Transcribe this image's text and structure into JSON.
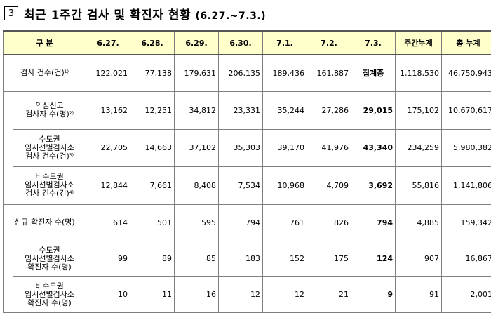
{
  "header": {
    "number": "3",
    "title": "최근 1주간 검사 및 확진자 현황",
    "date_range": "(6.27.~7.3.)"
  },
  "table": {
    "columns": [
      "구 분",
      "6.27.",
      "6.28.",
      "6.29.",
      "6.30.",
      "7.1.",
      "7.2.",
      "7.3.",
      "주간누계",
      "총 누계"
    ],
    "rows": [
      {
        "label": [
          "검사 건수(건)"
        ],
        "sup": "1)",
        "values": [
          "122,021",
          "77,138",
          "179,631",
          "206,135",
          "189,436",
          "161,887",
          "집계중",
          "1,118,530",
          "46,750,943"
        ]
      },
      {
        "label": [
          "의심신고",
          "검사자 수(명)"
        ],
        "sup": "2)",
        "values": [
          "13,162",
          "12,251",
          "34,812",
          "23,331",
          "35,244",
          "27,286",
          "29,015",
          "175,102",
          "10,670,617"
        ]
      },
      {
        "label": [
          "수도권",
          "임시선별검사소",
          "검사 건수(건)"
        ],
        "sup": "3)",
        "values": [
          "22,705",
          "14,663",
          "37,102",
          "35,303",
          "39,170",
          "41,976",
          "43,340",
          "234,259",
          "5,980,382"
        ]
      },
      {
        "label": [
          "비수도권",
          "임시선별검사소",
          "검사 건수(건)"
        ],
        "sup": "4)",
        "values": [
          "12,844",
          "7,661",
          "8,408",
          "7,534",
          "10,968",
          "4,709",
          "3,692",
          "55,816",
          "1,141,806"
        ]
      },
      {
        "label": [
          "신규 확진자 수(명)"
        ],
        "sup": "",
        "values": [
          "614",
          "501",
          "595",
          "794",
          "761",
          "826",
          "794",
          "4,885",
          "159,342"
        ]
      },
      {
        "label": [
          "수도권",
          "임시선별검사소",
          "확진자 수(명)"
        ],
        "sup": "",
        "values": [
          "99",
          "89",
          "85",
          "183",
          "152",
          "175",
          "124",
          "907",
          "16,867"
        ]
      },
      {
        "label": [
          "비수도권",
          "임시선별검사소",
          "확진자 수(명)"
        ],
        "sup": "",
        "values": [
          "10",
          "11",
          "16",
          "12",
          "12",
          "21",
          "9",
          "91",
          "2,001"
        ]
      }
    ]
  }
}
